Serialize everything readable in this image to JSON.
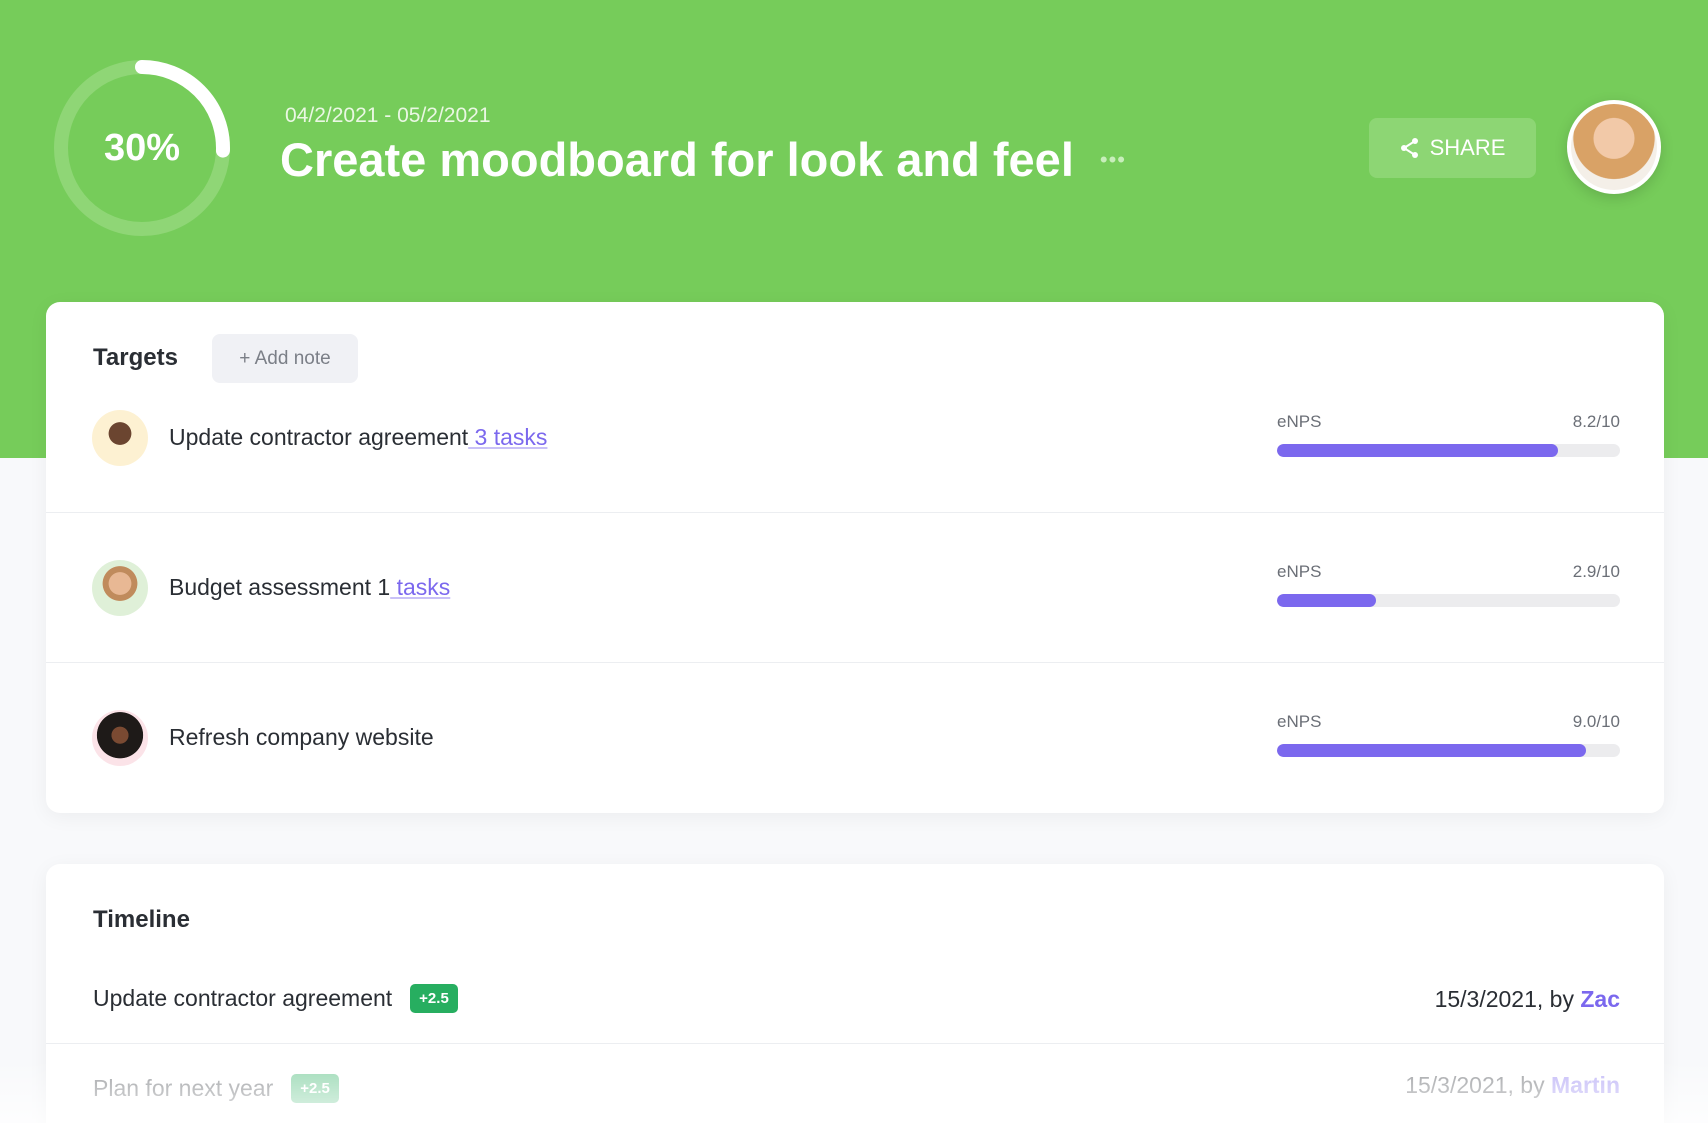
{
  "header": {
    "progress_percent": 30,
    "progress_label": "30%",
    "date_range": "04/2/2021 - 05/2/2021",
    "title": "Create moodboard for look and feel",
    "more_label": "•••",
    "share_label": "SHARE",
    "color": "#76cc5a"
  },
  "targets": {
    "heading": "Targets",
    "add_note_label": "+ Add note",
    "items": [
      {
        "name": "Update contractor agreement",
        "link": " 3 tasks",
        "metric": "eNPS",
        "score_label": "8.2/10",
        "score": 8.2
      },
      {
        "name": "Budget assessment 1",
        "link": " tasks",
        "metric": "eNPS",
        "score_label": "2.9/10",
        "score": 2.9
      },
      {
        "name": "Refresh company website",
        "link": "",
        "metric": "eNPS",
        "score_label": "9.0/10",
        "score": 9.0
      }
    ],
    "bar_color": "#7b68ee"
  },
  "timeline": {
    "heading": "Timeline",
    "items": [
      {
        "name": "Update contractor agreement",
        "badge": "+2.5",
        "date": "15/3/2021, by ",
        "user": "Zac"
      },
      {
        "name": "Plan for next year",
        "badge": "+2.5",
        "date": "15/3/2021, by ",
        "user": "Martin"
      }
    ]
  }
}
